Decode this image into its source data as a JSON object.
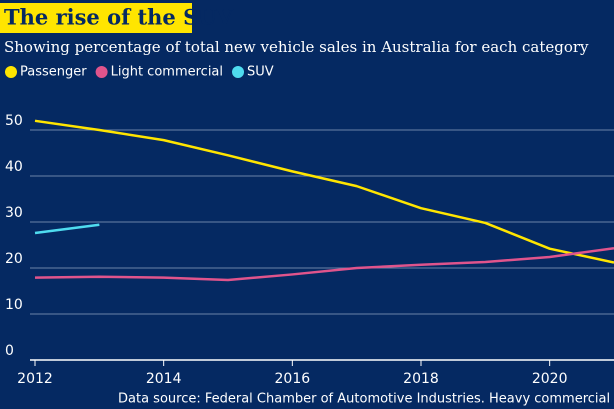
{
  "chart_data": {
    "type": "line",
    "title": "The rise of the SUV",
    "subtitle": "Showing percentage of total new vehicle sales in Australia for each category",
    "source": "Data source: Federal Chamber of Automotive Industries. Heavy commercial cat",
    "x": [
      2012,
      2013,
      2014,
      2015,
      2016,
      2017,
      2018,
      2019,
      2020,
      2021
    ],
    "series": [
      {
        "name": "Passenger",
        "color": "#ffe500",
        "values": [
          52,
          50,
          47.8,
          44.5,
          41,
          37.8,
          33,
          29.8,
          24.2,
          21.2
        ]
      },
      {
        "name": "Light commercial",
        "color": "#e0548c",
        "values": [
          17.9,
          18.1,
          17.9,
          17.4,
          18.6,
          20,
          20.7,
          21.3,
          22.4,
          24.3
        ]
      },
      {
        "name": "SUV",
        "color": "#4fdcef",
        "values": [
          27.6,
          29.4,
          null,
          null,
          null,
          null,
          null,
          null,
          null,
          null
        ]
      }
    ],
    "xlim": [
      2012,
      2021
    ],
    "xticks": [
      2012,
      2014,
      2016,
      2018,
      2020
    ],
    "ylim": [
      0,
      55
    ],
    "yticks": [
      0,
      10,
      20,
      30,
      40,
      50
    ],
    "grid": true
  }
}
